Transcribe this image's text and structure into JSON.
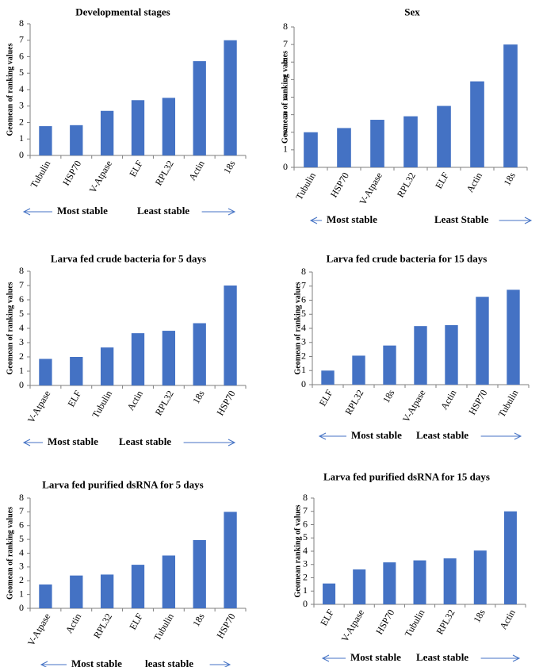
{
  "colors": {
    "bar": "#4472C4",
    "axis": "#7f7f7f",
    "arrow": "#4472C4",
    "text": "#000000"
  },
  "chart_data": [
    {
      "type": "bar",
      "title": "Developmental stages",
      "ylabel": "Geomean of ranking values",
      "ylim": [
        0,
        8
      ],
      "yticks": [
        "0",
        "1",
        "2",
        "3",
        "4",
        "5",
        "6",
        "7",
        "8"
      ],
      "categories": [
        "Tubulin",
        "HSP70",
        "V-Atpase",
        "ELF",
        "RPL32",
        "Actin",
        "18s"
      ],
      "values": [
        1.78,
        1.84,
        2.71,
        3.36,
        3.5,
        5.73,
        7.0
      ],
      "arrow_left_label": "Most stable",
      "arrow_right_label": "Least stable",
      "grid": false,
      "legend": "none"
    },
    {
      "type": "bar",
      "title": "Sex",
      "ylabel": "Geomean of ranking values",
      "ylim": [
        0,
        8
      ],
      "yticks": [
        "0",
        "1",
        "2",
        "3",
        "4",
        "5",
        "6",
        "7",
        "8"
      ],
      "categories": [
        "Tubulin",
        "HSP70",
        "V-Atpase",
        "RPL32",
        "ELF",
        "Actin",
        "18s"
      ],
      "values": [
        2.0,
        2.24,
        2.71,
        2.91,
        3.5,
        4.9,
        7.0
      ],
      "arrow_left_label": "Most stable",
      "arrow_right_label": "Least Stable",
      "grid": false,
      "legend": "none"
    },
    {
      "type": "bar",
      "title": "Larva fed crude bacteria for 5 days",
      "ylabel": "Geomean of ranking values",
      "ylim": [
        0,
        8
      ],
      "yticks": [
        "0",
        "1",
        "2",
        "3",
        "4",
        "5",
        "6",
        "7",
        "8"
      ],
      "categories": [
        "V-Atpase",
        "ELF",
        "Tubulin",
        "Actin",
        "RPL32",
        "18s",
        "HSP70"
      ],
      "values": [
        1.86,
        2.0,
        2.66,
        3.66,
        3.83,
        4.36,
        7.0
      ],
      "arrow_left_label": "Most stable",
      "arrow_right_label": "Least stable",
      "grid": false,
      "legend": "none"
    },
    {
      "type": "bar",
      "title": "Larva fed crude bacteria for 15 days",
      "ylabel": "Geomean of ranking values",
      "ylim": [
        0,
        8
      ],
      "yticks": [
        "0",
        "1",
        "2",
        "3",
        "4",
        "5",
        "6",
        "7",
        "8"
      ],
      "categories": [
        "ELF",
        "RPL32",
        "18s",
        "V-Atpase",
        "Actin",
        "HSP70",
        "Tubulin"
      ],
      "values": [
        1.0,
        2.06,
        2.78,
        4.16,
        4.23,
        6.24,
        6.74
      ],
      "arrow_left_label": "Most stable",
      "arrow_right_label": "Least stable",
      "grid": false,
      "legend": "none"
    },
    {
      "type": "bar",
      "title": "Larva fed purified dsRNA  for 5 days",
      "ylabel": "Geomean of ranking values",
      "ylim": [
        0,
        8
      ],
      "yticks": [
        "0",
        "1",
        "2",
        "3",
        "4",
        "5",
        "6",
        "7",
        "8"
      ],
      "categories": [
        "V-Atpase",
        "Actin",
        "RPL32",
        "ELF",
        "Tubulin",
        "18s",
        "HSP70"
      ],
      "values": [
        1.73,
        2.38,
        2.45,
        3.16,
        3.83,
        4.95,
        7.0
      ],
      "arrow_left_label": "Most stable",
      "arrow_right_label": "least stable",
      "grid": false,
      "legend": "none"
    },
    {
      "type": "bar",
      "title": "Larva fed purified dsRNA  for 15 days",
      "ylabel": "Geomean ranking of values",
      "ylim": [
        0,
        8
      ],
      "yticks": [
        "0",
        "1",
        "2",
        "3",
        "4",
        "5",
        "6",
        "7",
        "8"
      ],
      "categories": [
        "ELF",
        "V-Atpase",
        "HSP70",
        "Tubulin",
        "RPL32",
        "18s",
        "Actin"
      ],
      "values": [
        1.57,
        2.63,
        3.16,
        3.31,
        3.46,
        4.05,
        7.0
      ],
      "arrow_left_label": "Most stable",
      "arrow_right_label": "Least stable",
      "grid": false,
      "legend": "none"
    }
  ]
}
